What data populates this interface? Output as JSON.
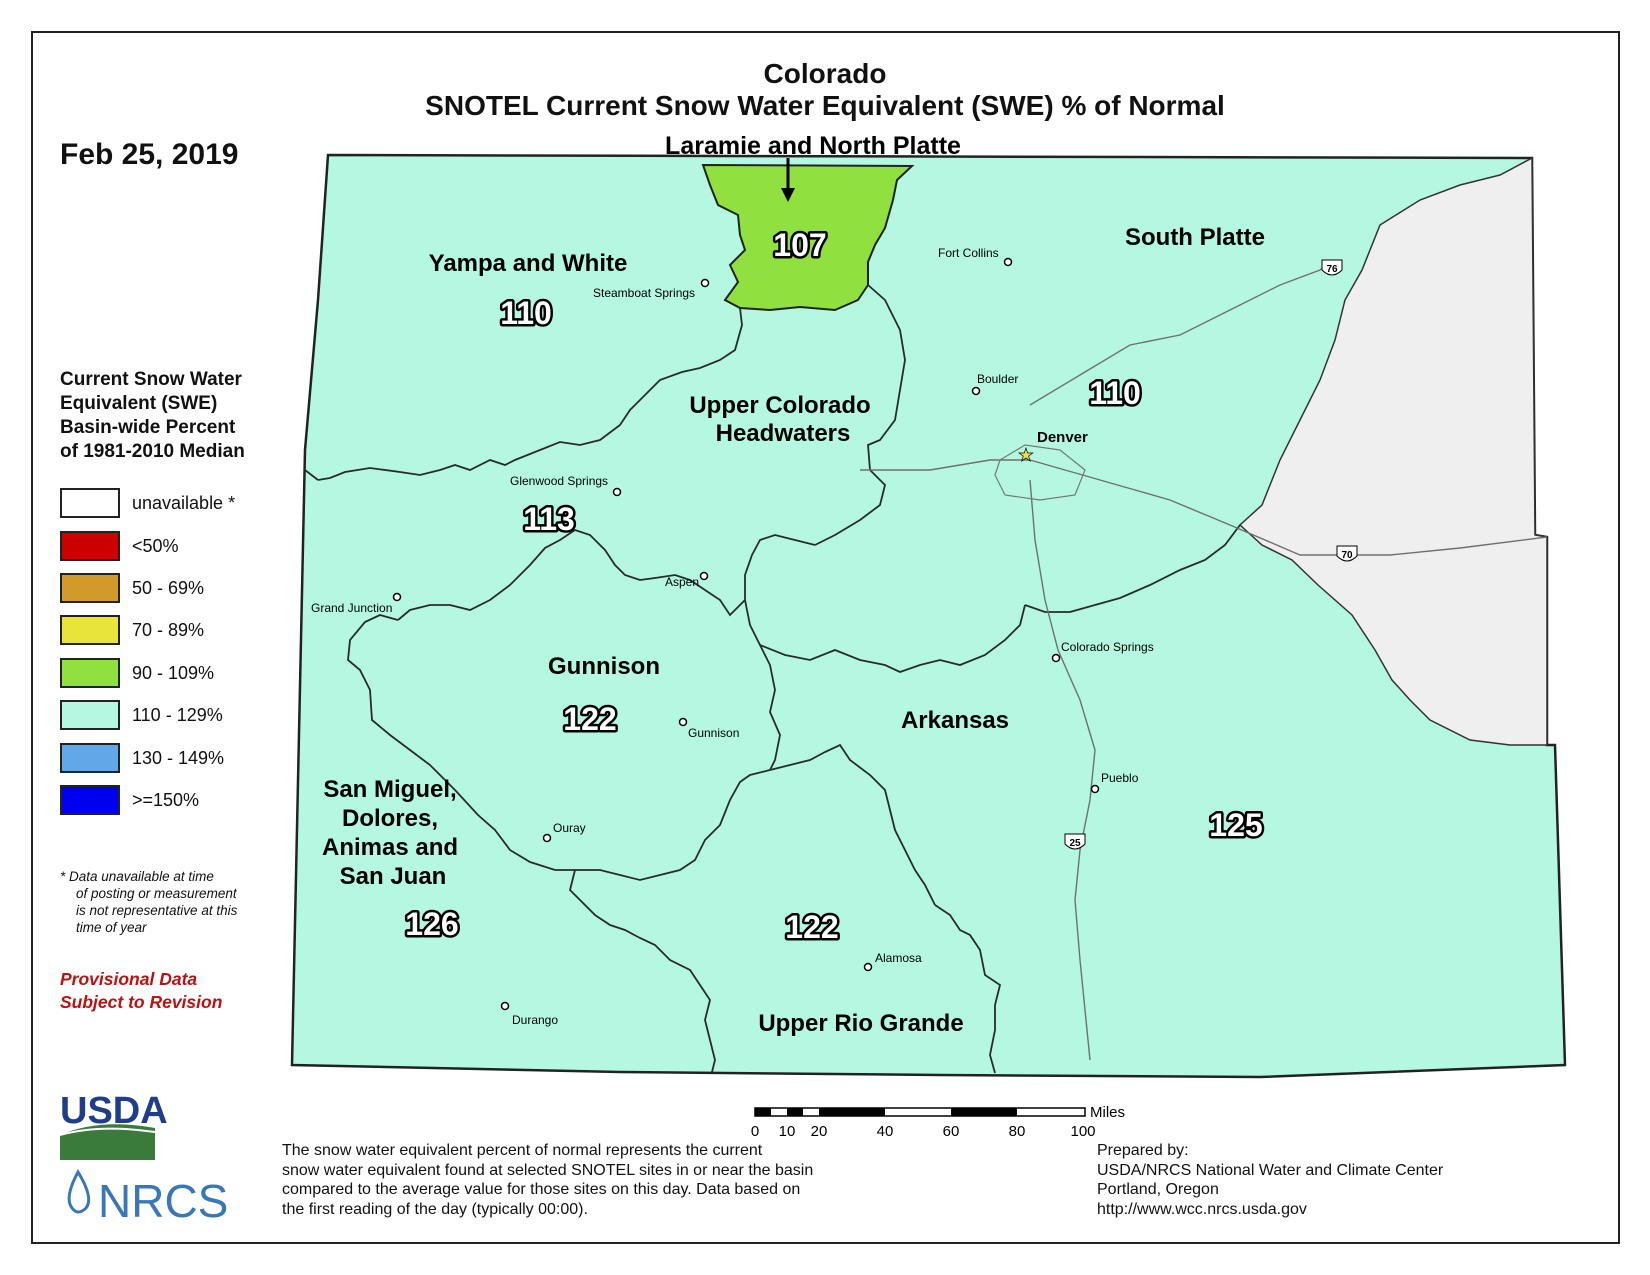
{
  "header": {
    "state": "Colorado",
    "title": "SNOTEL Current Snow Water Equivalent (SWE) % of Normal",
    "date": "Feb 25, 2019"
  },
  "legend": {
    "title_lines": [
      "Current Snow Water",
      "Equivalent (SWE)",
      "Basin-wide Percent",
      "of 1981-2010 Median"
    ],
    "items": [
      {
        "label": "unavailable *",
        "color": "#ffffff"
      },
      {
        "label": "<50%",
        "color": "#cc0000"
      },
      {
        "label": "50 - 69%",
        "color": "#d19a2a"
      },
      {
        "label": "70 - 89%",
        "color": "#e8e43a"
      },
      {
        "label": "90 - 109%",
        "color": "#90e040"
      },
      {
        "label": "110 - 129%",
        "color": "#b4f8e2"
      },
      {
        "label": "130 - 149%",
        "color": "#60a8e8"
      },
      {
        "label": ">=150%",
        "color": "#0000f0"
      }
    ],
    "footnote_lines": [
      "*  Data unavailable at time",
      "of posting or measurement",
      "is not representative at this",
      "time of year"
    ],
    "provisional_lines": [
      "Provisional Data",
      "Subject to Revision"
    ]
  },
  "basins": [
    {
      "name_lines": [
        "Laramie and North Platte"
      ],
      "value": "107",
      "color": "#90e040"
    },
    {
      "name_lines": [
        "Yampa and White"
      ],
      "value": "110",
      "color": "#b4f8e2"
    },
    {
      "name_lines": [
        "South Platte"
      ],
      "value": "110",
      "color": "#b4f8e2"
    },
    {
      "name_lines": [
        "Upper Colorado",
        "Headwaters"
      ],
      "value": "113",
      "color": "#b4f8e2"
    },
    {
      "name_lines": [
        "Gunnison"
      ],
      "value": "122",
      "color": "#b4f8e2"
    },
    {
      "name_lines": [
        "Arkansas"
      ],
      "value": "125",
      "color": "#b4f8e2"
    },
    {
      "name_lines": [
        "San Miguel,",
        "Dolores,",
        "Animas and",
        "San Juan"
      ],
      "value": "126",
      "color": "#b4f8e2"
    },
    {
      "name_lines": [
        "Upper Rio Grande"
      ],
      "value": "122",
      "color": "#b4f8e2"
    }
  ],
  "unavailable_area_color": "#efefef",
  "cities": [
    "Fort Collins",
    "Steamboat Springs",
    "Boulder",
    "Denver",
    "Glenwood Springs",
    "Aspen",
    "Grand Junction",
    "Colorado Springs",
    "Gunnison",
    "Pueblo",
    "Ouray",
    "Alamosa",
    "Durango"
  ],
  "highways": [
    "76",
    "70",
    "25"
  ],
  "scale_bar": {
    "unit": "Miles",
    "ticks": [
      "0",
      "10",
      "20",
      "40",
      "60",
      "80",
      "100"
    ]
  },
  "logos": {
    "usda": "USDA",
    "nrcs": "NRCS"
  },
  "description_lines": [
    "The snow water equivalent percent of normal represents the current",
    "snow water equivalent found at selected SNOTEL sites in or near the basin",
    "compared to the average value for those sites on this day. Data based on",
    "the first reading of the day (typically 00:00)."
  ],
  "prepared_lines": [
    "Prepared by:",
    "USDA/NRCS National Water and Climate Center",
    "Portland, Oregon",
    "http://www.wcc.nrcs.usda.gov"
  ]
}
